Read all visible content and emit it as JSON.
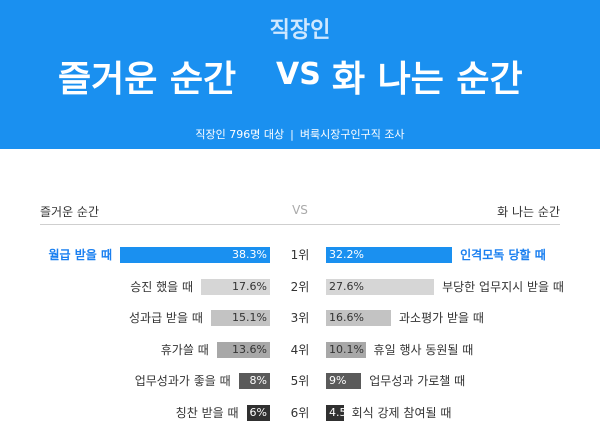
{
  "header": {
    "subtitle": "직장인",
    "title_left": "즐거운 순간",
    "vs": "VS",
    "title_right": "화 나는 순간",
    "caption_left": "직장인 796명 대상",
    "caption_sep": "|",
    "caption_right": "벼룩시장구인구직 조사"
  },
  "columns": {
    "left_header": "즐거운 순간",
    "middle_header": "VS",
    "right_header": "화 나는 순간"
  },
  "colors": {
    "header_bg": "#1a90f0",
    "highlight": "#1a90f0",
    "highlight_text": "#1a7ff0",
    "gray_scale": [
      "#1a90f0",
      "#d6d6d6",
      "#c3c3c3",
      "#a8a8a8",
      "#5a5a5a",
      "#303030"
    ]
  },
  "chart_data": {
    "type": "bar",
    "categories": [
      "1위",
      "2위",
      "3위",
      "4위",
      "5위",
      "6위"
    ],
    "series": [
      {
        "name": "즐거운 순간",
        "labels": [
          "월급 받을 때",
          "승진 했을 때",
          "성과급 받을 때",
          "휴가쓸 때",
          "업무성과가 좋을 때",
          "칭찬 받을 때"
        ],
        "values": [
          38.3,
          17.6,
          15.1,
          13.6,
          8,
          6
        ],
        "value_labels": [
          "38.3%",
          "17.6%",
          "15.1%",
          "13.6%",
          "8%",
          "6%"
        ]
      },
      {
        "name": "화 나는 순간",
        "labels": [
          "인격모독 당할 때",
          "부당한 업무지시 받을 때",
          "과소평가 받을 때",
          "휴일 행사 동원될 때",
          "업무성과 가로챌 때",
          "회식 강제 참여될 때"
        ],
        "values": [
          32.2,
          27.6,
          16.6,
          10.1,
          9,
          4.5
        ],
        "value_labels": [
          "32.2%",
          "27.6%",
          "16.6%",
          "10.1%",
          "9%",
          "4.5%"
        ]
      }
    ]
  }
}
